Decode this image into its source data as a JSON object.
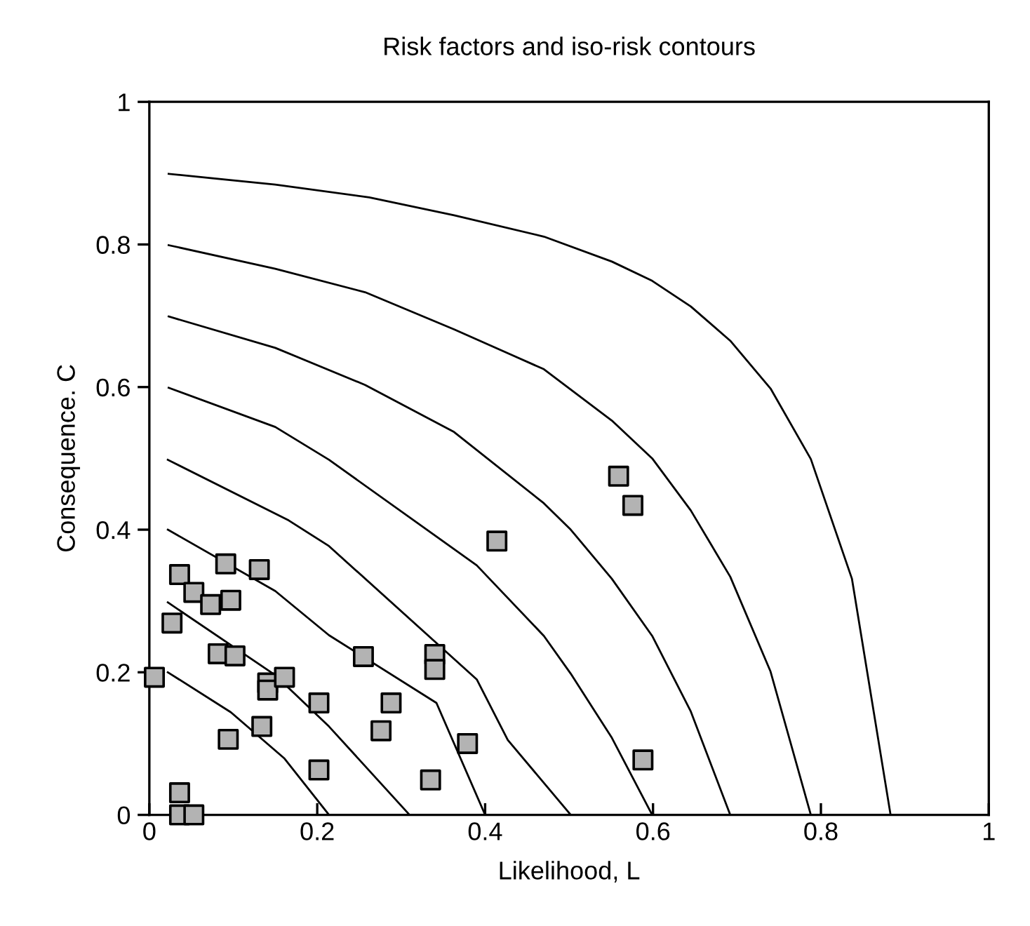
{
  "chart_data": {
    "type": "scatter",
    "title": "Risk factors and iso-risk contours",
    "xlabel": "Likelihood, L",
    "ylabel": "Consequence. C",
    "xlim": [
      0,
      1
    ],
    "ylim": [
      0,
      1
    ],
    "xticks": [
      0,
      {
        "value": 0.2,
        "label": "0.2"
      },
      {
        "value": 0.4,
        "label": "0.4"
      },
      {
        "value": 0.6,
        "label": "0.6"
      },
      {
        "value": 0.8,
        "label": "0.8"
      },
      1
    ],
    "yticks": [
      0,
      {
        "value": 0.2,
        "label": "0.2"
      },
      {
        "value": 0.4,
        "label": "0.4"
      },
      {
        "value": 0.6,
        "label": "0.6"
      },
      {
        "value": 0.8,
        "label": "0.8"
      },
      1
    ],
    "grid": false,
    "legend": false,
    "series": [
      {
        "type": "line",
        "color": "#000000",
        "marker": "none",
        "line_style": "solid",
        "x": [
          0.022,
          0.097,
          0.161,
          0.214
        ],
        "values": [
          0.2,
          0.144,
          0.079,
          0
        ]
      },
      {
        "type": "line",
        "color": "#000000",
        "marker": "none",
        "line_style": "solid",
        "x": [
          0.022,
          0.15,
          0.214,
          0.31
        ],
        "values": [
          0.298,
          0.196,
          0.124,
          0
        ]
      },
      {
        "type": "line",
        "color": "#000000",
        "marker": "none",
        "line_style": "solid",
        "x": [
          0.022,
          0.15,
          0.214,
          0.342,
          0.4
        ],
        "values": [
          0.4,
          0.314,
          0.252,
          0.157,
          0
        ]
      },
      {
        "type": "line",
        "color": "#000000",
        "marker": "none",
        "line_style": "solid",
        "x": [
          0.022,
          0.166,
          0.214,
          0.39,
          0.427,
          0.502
        ],
        "values": [
          0.498,
          0.413,
          0.377,
          0.19,
          0.105,
          0
        ]
      },
      {
        "type": "line",
        "color": "#000000",
        "marker": "none",
        "line_style": "solid",
        "x": [
          0.023,
          0.15,
          0.214,
          0.39,
          0.47,
          0.502,
          0.551,
          0.599
        ],
        "values": [
          0.599,
          0.544,
          0.498,
          0.35,
          0.251,
          0.198,
          0.108,
          0
        ]
      },
      {
        "type": "line",
        "color": "#000000",
        "marker": "none",
        "line_style": "solid",
        "x": [
          0.023,
          0.15,
          0.257,
          0.363,
          0.47,
          0.502,
          0.551,
          0.599,
          0.645,
          0.692
        ],
        "values": [
          0.699,
          0.655,
          0.603,
          0.537,
          0.437,
          0.4,
          0.331,
          0.251,
          0.145,
          0
        ]
      },
      {
        "type": "line",
        "color": "#000000",
        "marker": "none",
        "line_style": "solid",
        "x": [
          0.023,
          0.15,
          0.257,
          0.363,
          0.47,
          0.551,
          0.599,
          0.645,
          0.692,
          0.74,
          0.788
        ],
        "values": [
          0.799,
          0.766,
          0.733,
          0.681,
          0.625,
          0.553,
          0.5,
          0.427,
          0.334,
          0.201,
          0
        ]
      },
      {
        "type": "line",
        "color": "#000000",
        "marker": "none",
        "line_style": "solid",
        "x": [
          0.023,
          0.15,
          0.262,
          0.363,
          0.47,
          0.551,
          0.599,
          0.645,
          0.692,
          0.74,
          0.788,
          0.837,
          0.883
        ],
        "values": [
          0.899,
          0.884,
          0.866,
          0.841,
          0.811,
          0.776,
          0.749,
          0.713,
          0.665,
          0.598,
          0.499,
          0.331,
          0
        ]
      },
      {
        "color": "#b3b3b3",
        "marker": "square",
        "x": [
          0.036,
          0.091,
          0.131,
          0.053,
          0.073,
          0.097,
          0.027,
          0.082,
          0.102,
          0.006,
          0.141,
          0.141,
          0.161,
          0.202,
          0.288,
          0.255,
          0.34,
          0.34,
          0.134,
          0.094,
          0.276,
          0.379,
          0.202,
          0.335,
          0.036,
          0.036,
          0.053,
          0.559,
          0.576,
          0.588,
          0.414
        ],
        "values": [
          0.337,
          0.352,
          0.344,
          0.312,
          0.295,
          0.301,
          0.269,
          0.226,
          0.223,
          0.193,
          0.185,
          0.175,
          0.193,
          0.157,
          0.157,
          0.222,
          0.225,
          0.204,
          0.124,
          0.106,
          0.118,
          0.1,
          0.063,
          0.049,
          0.031,
          0,
          0,
          0.475,
          0.434,
          0.077,
          0.384
        ]
      }
    ]
  }
}
